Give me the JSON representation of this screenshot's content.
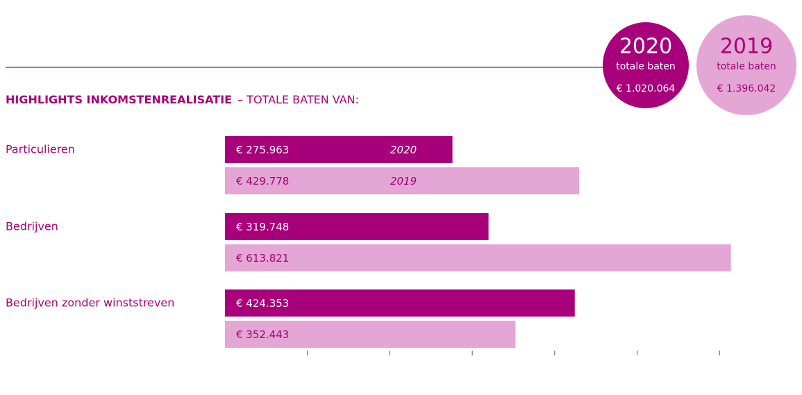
{
  "chart_data": {
    "type": "bar",
    "title": "HIGHLIGHTS INKOMSTENREALISATIE",
    "subtitle": "– TOTALE BATEN VAN:",
    "categories": [
      "Particulieren",
      "Bedrijven",
      "Bedrijven zonder winststreven"
    ],
    "series": [
      {
        "name": "2020",
        "color": "#a8007a",
        "values": [
          275963,
          319748,
          424353
        ],
        "value_labels": [
          "€ 275.963",
          "€ 319.748",
          "€ 424.353"
        ]
      },
      {
        "name": "2019",
        "color": "#e4a6d4",
        "values": [
          429778,
          613821,
          352443
        ],
        "value_labels": [
          "€ 429.778",
          "€ 613.821",
          "€ 352.443"
        ]
      }
    ],
    "totals": [
      {
        "label": "totale baten",
        "value_label": "€ 1.020.064"
      },
      {
        "label": "totale baten",
        "value_label": "€ 1.396.042"
      }
    ],
    "xlim": [
      0,
      620000
    ],
    "xticks": [
      100000,
      200000,
      300000,
      400000,
      500000,
      600000
    ]
  }
}
